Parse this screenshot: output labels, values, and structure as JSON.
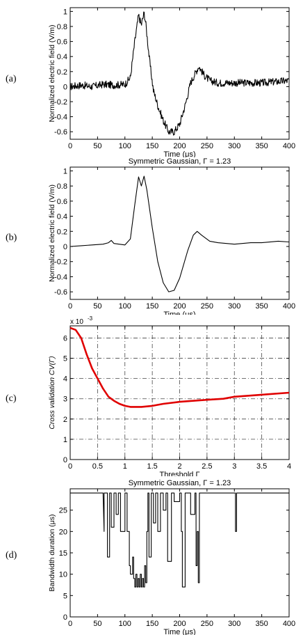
{
  "panel_labels": [
    "(a)",
    "(b)",
    "(c)",
    "(d)"
  ],
  "chart_data": [
    {
      "type": "line",
      "title": "",
      "xlabel": "Time (μs)",
      "ylabel": "Normalized electric field (V/m)",
      "xlim": [
        0,
        400
      ],
      "ylim": [
        -0.7,
        1.05
      ],
      "xticks": [
        0,
        50,
        100,
        150,
        200,
        250,
        300,
        350,
        400
      ],
      "yticks": [
        -0.6,
        -0.4,
        -0.2,
        0,
        0.2,
        0.4,
        0.6,
        0.8,
        1
      ],
      "ytick_labels": [
        "-0.6",
        "-0.4",
        "-0.2",
        "0",
        "0.2",
        "0.4",
        "0.6",
        "0.8",
        "1"
      ],
      "grid": false,
      "line_color": "#000000",
      "noisy": true,
      "series": [
        {
          "x": [
            0,
            20,
            40,
            60,
            80,
            100,
            110,
            118,
            125,
            130,
            135,
            138,
            145,
            152,
            160,
            170,
            180,
            190,
            200,
            210,
            220,
            230,
            235,
            245,
            255,
            270,
            300,
            350,
            400
          ],
          "y": [
            0.0,
            0.02,
            0.0,
            0.03,
            0.02,
            0.03,
            0.12,
            0.6,
            0.95,
            0.82,
            0.98,
            0.85,
            0.35,
            -0.05,
            -0.25,
            -0.45,
            -0.6,
            -0.6,
            -0.5,
            -0.25,
            0.05,
            0.2,
            0.27,
            0.15,
            0.08,
            0.05,
            0.05,
            0.05,
            0.08
          ]
        }
      ]
    },
    {
      "type": "line",
      "title": "Symmetric Gaussian, Γ = 1.23",
      "xlabel": "Time (μs)",
      "ylabel": "Normalized electric field (V/m)",
      "xlim": [
        0,
        400
      ],
      "ylim": [
        -0.7,
        1.05
      ],
      "xticks": [
        0,
        50,
        100,
        150,
        200,
        250,
        300,
        350,
        400
      ],
      "yticks": [
        -0.6,
        -0.4,
        -0.2,
        0,
        0.2,
        0.4,
        0.6,
        0.8,
        1
      ],
      "ytick_labels": [
        "-0.6",
        "-0.4",
        "-0.2",
        "0",
        "0.2",
        "0.4",
        "0.6",
        "0.8",
        "1"
      ],
      "grid": false,
      "line_color": "#000000",
      "noisy": false,
      "series": [
        {
          "x": [
            0,
            20,
            40,
            60,
            70,
            75,
            80,
            100,
            110,
            118,
            125,
            130,
            135,
            140,
            150,
            160,
            170,
            180,
            190,
            200,
            215,
            225,
            232,
            240,
            255,
            270,
            300,
            330,
            350,
            380,
            400
          ],
          "y": [
            0.0,
            0.01,
            0.02,
            0.03,
            0.05,
            0.08,
            0.04,
            0.02,
            0.1,
            0.55,
            0.92,
            0.8,
            0.93,
            0.75,
            0.25,
            -0.2,
            -0.48,
            -0.6,
            -0.58,
            -0.42,
            -0.05,
            0.15,
            0.2,
            0.15,
            0.07,
            0.05,
            0.03,
            0.05,
            0.05,
            0.07,
            0.06
          ]
        }
      ]
    },
    {
      "type": "line",
      "title": "",
      "xlabel": "Threshold Γ",
      "ylabel": "Cross validation CV(Γ)",
      "exponent_label": "x 10",
      "exponent_power": "-3",
      "xlim": [
        0,
        4
      ],
      "ylim": [
        0,
        6.6
      ],
      "xticks": [
        0,
        0.5,
        1,
        1.5,
        2,
        2.5,
        3,
        3.5,
        4
      ],
      "xtick_labels": [
        "0",
        "0.5",
        "1",
        "1.5",
        "2",
        "2.5",
        "3",
        "3.5",
        "4"
      ],
      "yticks": [
        0,
        1,
        2,
        3,
        4,
        5,
        6
      ],
      "ytick_labels": [
        "0",
        "1",
        "2",
        "3",
        "4",
        "5",
        "6"
      ],
      "grid": true,
      "line_color": "#e00000",
      "noisy": false,
      "series": [
        {
          "x": [
            0,
            0.1,
            0.2,
            0.3,
            0.4,
            0.5,
            0.6,
            0.7,
            0.8,
            0.9,
            1.0,
            1.1,
            1.2,
            1.3,
            1.5,
            1.7,
            2.0,
            2.5,
            2.8,
            3.0,
            3.5,
            4.0
          ],
          "y": [
            6.5,
            6.4,
            6.0,
            5.2,
            4.5,
            4.0,
            3.5,
            3.1,
            2.9,
            2.75,
            2.65,
            2.6,
            2.6,
            2.6,
            2.65,
            2.75,
            2.85,
            2.95,
            3.0,
            3.1,
            3.2,
            3.3
          ]
        }
      ]
    },
    {
      "type": "line",
      "title": "Symmetric Gaussian, Γ = 1.23",
      "xlabel": "Time (μs)",
      "ylabel": "Bandwidth duration (μs)",
      "xlim": [
        0,
        400
      ],
      "ylim": [
        0,
        30
      ],
      "xticks": [
        0,
        50,
        100,
        150,
        200,
        250,
        300,
        350,
        400
      ],
      "yticks": [
        0,
        5,
        10,
        15,
        20,
        25
      ],
      "ytick_labels": [
        "0",
        "5",
        "10",
        "15",
        "20",
        "25"
      ],
      "grid": false,
      "line_color": "#000000",
      "noisy": false,
      "series": [
        {
          "x": [
            0,
            60,
            62,
            62,
            64,
            64,
            68,
            68,
            72,
            72,
            75,
            75,
            80,
            80,
            84,
            84,
            88,
            88,
            92,
            92,
            96,
            96,
            100,
            100,
            104,
            104,
            108,
            108,
            110,
            110,
            114,
            114,
            116,
            116,
            118,
            118,
            120,
            120,
            122,
            122,
            124,
            124,
            126,
            126,
            128,
            128,
            130,
            130,
            132,
            132,
            134,
            134,
            136,
            136,
            138,
            138,
            140,
            140,
            142,
            142,
            144,
            144,
            148,
            148,
            152,
            152,
            156,
            156,
            160,
            160,
            165,
            165,
            170,
            170,
            175,
            175,
            178,
            178,
            185,
            185,
            190,
            190,
            200,
            200,
            203,
            203,
            205,
            205,
            210,
            210,
            220,
            220,
            228,
            228,
            230,
            230,
            232,
            232,
            234,
            234,
            236,
            236,
            240,
            240,
            302,
            302,
            304,
            304,
            350,
            400
          ],
          "y": [
            29,
            29,
            20,
            29,
            29,
            29,
            29,
            14,
            14,
            29,
            29,
            21,
            21,
            29,
            29,
            24,
            24,
            29,
            29,
            20,
            20,
            20,
            20,
            29,
            29,
            20,
            20,
            12,
            12,
            10,
            10,
            14,
            14,
            9,
            9,
            7,
            7,
            10,
            10,
            7,
            7,
            9,
            9,
            7,
            7,
            10,
            10,
            7,
            7,
            9,
            9,
            7,
            7,
            12,
            12,
            8,
            8,
            20,
            20,
            29,
            29,
            14,
            14,
            29,
            29,
            22,
            22,
            29,
            29,
            20,
            20,
            29,
            29,
            25,
            25,
            29,
            29,
            13,
            13,
            29,
            29,
            27,
            27,
            29,
            29,
            20,
            20,
            7,
            7,
            29,
            29,
            24,
            24,
            29,
            29,
            12,
            12,
            20,
            20,
            8,
            8,
            29,
            29,
            29,
            29,
            20,
            20,
            29,
            29,
            29
          ]
        }
      ]
    }
  ]
}
